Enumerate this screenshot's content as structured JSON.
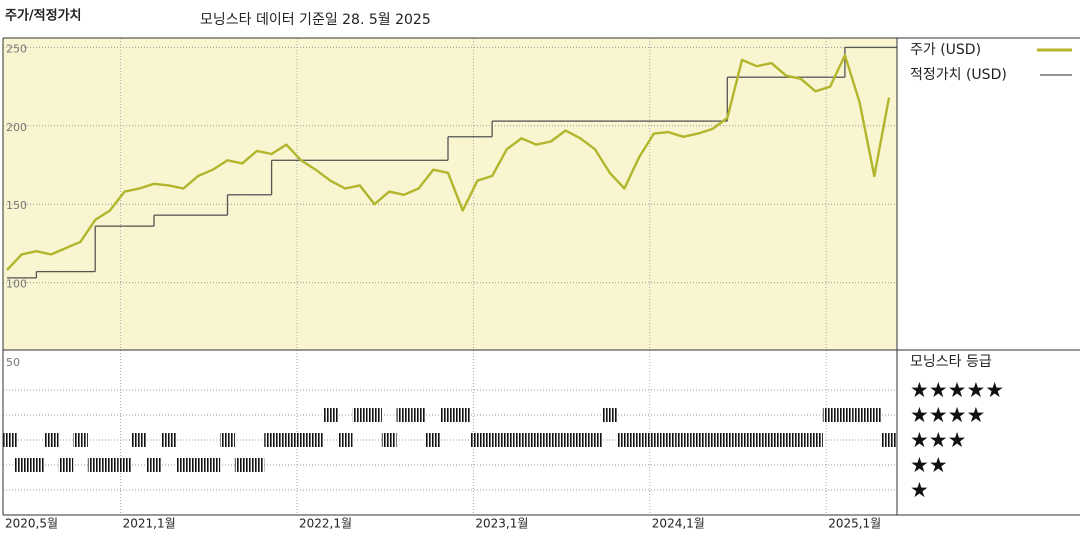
{
  "chart_data": [
    {
      "type": "line",
      "title": "주가/적정가치",
      "subtitle": "모닝스타 데이터 기준일 28. 5월 2025",
      "x": [
        "2020-05",
        "2020-06",
        "2020-07",
        "2020-08",
        "2020-09",
        "2020-10",
        "2020-11",
        "2020-12",
        "2021-01",
        "2021-02",
        "2021-03",
        "2021-04",
        "2021-05",
        "2021-06",
        "2021-07",
        "2021-08",
        "2021-09",
        "2021-10",
        "2021-11",
        "2021-12",
        "2022-01",
        "2022-02",
        "2022-03",
        "2022-04",
        "2022-05",
        "2022-06",
        "2022-07",
        "2022-08",
        "2022-09",
        "2022-10",
        "2022-11",
        "2022-12",
        "2023-01",
        "2023-02",
        "2023-03",
        "2023-04",
        "2023-05",
        "2023-06",
        "2023-07",
        "2023-08",
        "2023-09",
        "2023-10",
        "2023-11",
        "2023-12",
        "2024-01",
        "2024-02",
        "2024-03",
        "2024-04",
        "2024-05",
        "2024-06",
        "2024-07",
        "2024-08",
        "2024-09",
        "2024-10",
        "2024-11",
        "2024-12",
        "2025-01",
        "2025-02",
        "2025-03",
        "2025-04",
        "2025-05"
      ],
      "xticks": [
        {
          "value": "2020-05",
          "label": "2020,5월"
        },
        {
          "value": "2021-01",
          "label": "2021,1월"
        },
        {
          "value": "2022-01",
          "label": "2022,1월"
        },
        {
          "value": "2023-01",
          "label": "2023,1월"
        },
        {
          "value": "2024-01",
          "label": "2024,1월"
        },
        {
          "value": "2025-01",
          "label": "2025,1월"
        }
      ],
      "ylim": [
        57,
        256
      ],
      "yticks": [
        100,
        150,
        200,
        250
      ],
      "grid": true,
      "background": "#f8f5d0",
      "series": [
        {
          "name": "주가 (USD)",
          "color": "#b3b52c",
          "step": false,
          "values": [
            108,
            118,
            120,
            118,
            122,
            126,
            140,
            146,
            158,
            160,
            163,
            162,
            160,
            168,
            172,
            178,
            176,
            184,
            182,
            188,
            178,
            172,
            165,
            160,
            162,
            150,
            158,
            156,
            160,
            172,
            170,
            146,
            165,
            168,
            185,
            192,
            188,
            190,
            197,
            192,
            185,
            170,
            160,
            180,
            195,
            196,
            193,
            195,
            198,
            205,
            242,
            238,
            240,
            232,
            230,
            222,
            225,
            245,
            215,
            168,
            218
          ]
        },
        {
          "name": "적정가치 (USD)",
          "color": "#555555",
          "step": true,
          "values": [
            103,
            103,
            107,
            107,
            107,
            107,
            136,
            136,
            136,
            136,
            143,
            143,
            143,
            143,
            143,
            156,
            156,
            156,
            178,
            178,
            178,
            178,
            178,
            178,
            178,
            178,
            178,
            178,
            178,
            178,
            193,
            193,
            193,
            203,
            203,
            203,
            203,
            203,
            203,
            203,
            203,
            203,
            203,
            203,
            203,
            203,
            203,
            203,
            203,
            231,
            231,
            231,
            231,
            231,
            231,
            231,
            231,
            250,
            250,
            250,
            250
          ]
        }
      ]
    },
    {
      "type": "rating",
      "title": "모닝스타 등급",
      "axis_label": "50",
      "color": "#111111",
      "ylim": [
        0,
        6.6
      ],
      "yticks": [
        {
          "value": 5,
          "label": "★★★★★"
        },
        {
          "value": 4,
          "label": "★★★★"
        },
        {
          "value": 3,
          "label": "★★★"
        },
        {
          "value": 2,
          "label": "★★"
        },
        {
          "value": 1,
          "label": "★"
        }
      ],
      "values": [
        3,
        2,
        2,
        3,
        2,
        3,
        2,
        2,
        2,
        3,
        2,
        3,
        2,
        2,
        2,
        3,
        2,
        2,
        3,
        3,
        3,
        3,
        4,
        3,
        4,
        4,
        3,
        4,
        4,
        3,
        4,
        4,
        3,
        3,
        3,
        3,
        3,
        3,
        3,
        3,
        3,
        4,
        3,
        3,
        3,
        3,
        3,
        3,
        3,
        3,
        3,
        3,
        3,
        3,
        3,
        3,
        4,
        4,
        4,
        4,
        3
      ]
    }
  ]
}
